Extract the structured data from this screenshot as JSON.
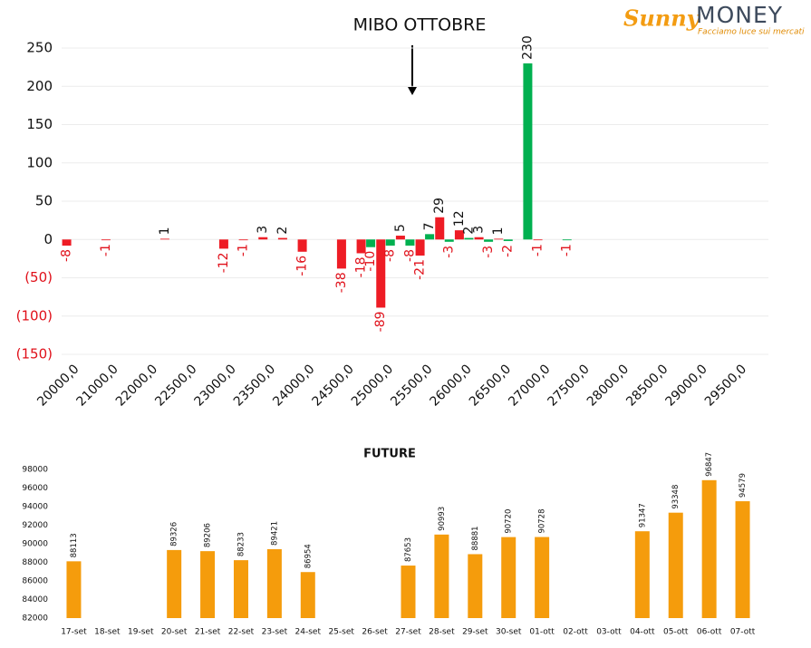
{
  "logo": {
    "brand": "Sunny",
    "name": "MONEY",
    "tagline": "Facciamo luce sui mercati"
  },
  "chart_data": [
    {
      "type": "bar",
      "annotation": "MIBO OTTOBRE",
      "categories": [
        "20000,0",
        null,
        "21000,0",
        null,
        "22000,0",
        null,
        "22500,0",
        null,
        "23000,0",
        null,
        "23500,0",
        null,
        "24000,0",
        null,
        "24500,0",
        null,
        "25000,0",
        null,
        "25500,0",
        null,
        "26000,0",
        null,
        "26500,0",
        null,
        "27000,0",
        null,
        "27500,0",
        null,
        "28000,0",
        null,
        "28500,0",
        null,
        "29000,0",
        null,
        "29500,0",
        null
      ],
      "series": [
        {
          "color": "#ee1c25",
          "values": [
            -8,
            null,
            -1,
            null,
            null,
            1,
            null,
            null,
            -12,
            -1,
            3,
            2,
            -16,
            null,
            -38,
            -18,
            -89,
            5,
            -21,
            29,
            12,
            3,
            1,
            null,
            -1,
            null,
            null,
            null,
            null,
            null,
            null,
            null,
            null,
            null,
            null,
            null
          ]
        },
        {
          "color": "#00b050",
          "values": [
            null,
            null,
            null,
            null,
            null,
            null,
            null,
            null,
            null,
            null,
            null,
            null,
            null,
            null,
            null,
            -10,
            -8,
            -8,
            7,
            -3,
            2,
            -3,
            -2,
            230,
            null,
            -1,
            null,
            null,
            null,
            null,
            null,
            null,
            null,
            null,
            null,
            null
          ]
        }
      ],
      "ylim": [
        -150,
        250
      ],
      "yticks": [
        {
          "value": -150,
          "label": "(150)"
        },
        {
          "value": -100,
          "label": "(100)"
        },
        {
          "value": -50,
          "label": "(50)"
        },
        0,
        50,
        100,
        150,
        200,
        250
      ],
      "grid": true
    },
    {
      "type": "bar",
      "title": "FUTURE",
      "categories": [
        "17-set",
        "18-set",
        "19-set",
        "20-set",
        "21-set",
        "22-set",
        "23-set",
        "24-set",
        "25-set",
        "26-set",
        "27-set",
        "28-set",
        "29-set",
        "30-set",
        "01-ott",
        "02-ott",
        "03-ott",
        "04-ott",
        "05-ott",
        "06-ott",
        "07-ott"
      ],
      "values": [
        88113,
        null,
        null,
        89326,
        89206,
        88233,
        89421,
        86954,
        null,
        null,
        87653,
        90993,
        88881,
        90720,
        90728,
        null,
        null,
        91347,
        93348,
        96847,
        94579
      ],
      "color": "#f59c0c",
      "ylim": [
        82000,
        98000
      ],
      "yticks": [
        82000,
        84000,
        86000,
        88000,
        90000,
        92000,
        94000,
        96000,
        98000
      ],
      "grid": false
    }
  ]
}
